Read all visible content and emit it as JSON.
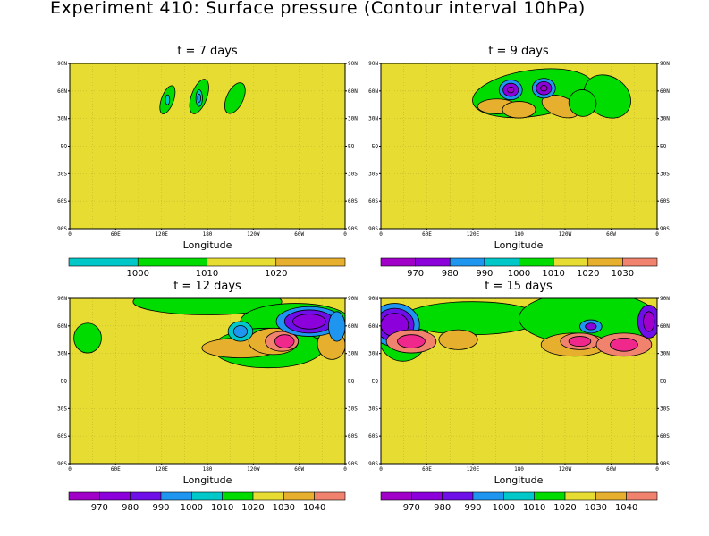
{
  "title": "Experiment 410: Surface pressure (Contour interval 10hPa)",
  "colors": {
    "c950": "#a000c8",
    "c960": "#8c00dc",
    "c970": "#6e0ee8",
    "c980": "#1e96f0",
    "c990": "#00c8c8",
    "c1000": "#00dc00",
    "c1010": "#e6dc32",
    "c1020": "#e6af2d",
    "c1030": "#f0826e",
    "c1040": "#f0288c",
    "bg": "#e6dc32"
  },
  "chart_data": [
    {
      "type": "contour",
      "title": "t = 7 days",
      "xlabel": "Longitude",
      "x_ticks": [
        "0",
        "60E",
        "120E",
        "180",
        "120W",
        "60W",
        "0"
      ],
      "y_ticks_left": [
        "90N",
        "60N",
        "30N",
        "EQ",
        "30S",
        "60S",
        "90S"
      ],
      "y_ticks_right": [
        "90N",
        "60N",
        "30N",
        "EQ",
        "30S",
        "60S",
        "90S"
      ],
      "field": "Surface pressure (hPa)",
      "colorbar_labels": [
        "1000",
        "1010",
        "1020"
      ],
      "colorbar_colors": [
        "#00c8c8",
        "#00dc00",
        "#e6dc32",
        "#e6af2d"
      ],
      "features": [
        {
          "level": 1000,
          "lon": 120,
          "lat": 45
        },
        {
          "level": 990,
          "lon": 160,
          "lat": 50
        },
        {
          "level": 1000,
          "lon": 215,
          "lat": 45
        }
      ]
    },
    {
      "type": "contour",
      "title": "t = 9 days",
      "xlabel": "Longitude",
      "x_ticks": [
        "0",
        "60E",
        "120E",
        "180",
        "120W",
        "60W",
        "0"
      ],
      "y_ticks_left": [
        "90N",
        "60N",
        "30N",
        "EQ",
        "30S",
        "60S",
        "90S"
      ],
      "y_ticks_right": [
        "90N",
        "60N",
        "30N",
        "EQ",
        "30S",
        "60S",
        "90S"
      ],
      "field": "Surface pressure (hPa)",
      "colorbar_labels": [
        "970",
        "980",
        "990",
        "1000",
        "1010",
        "1020",
        "1030"
      ],
      "colorbar_colors": [
        "#a000c8",
        "#8c00dc",
        "#1e96f0",
        "#00c8c8",
        "#00dc00",
        "#e6dc32",
        "#e6af2d",
        "#f0826e"
      ],
      "features": [
        {
          "level": 970,
          "lon": 168,
          "lat": 55
        },
        {
          "level": 970,
          "lon": 200,
          "lat": 55
        },
        {
          "level": 1020,
          "lon": 150,
          "lat": 40
        },
        {
          "level": 1020,
          "lon": 205,
          "lat": 35
        }
      ]
    },
    {
      "type": "contour",
      "title": "t = 12 days",
      "xlabel": "Longitude",
      "x_ticks": [
        "0",
        "60E",
        "120E",
        "180",
        "120W",
        "60W",
        "0"
      ],
      "y_ticks_left": [
        "90N",
        "60N",
        "30N",
        "EQ",
        "30S",
        "60S",
        "90S"
      ],
      "y_ticks_right": [
        "90N",
        "60N",
        "30N",
        "EQ",
        "30S",
        "60S",
        "90S"
      ],
      "field": "Surface pressure (hPa)",
      "colorbar_labels": [
        "970",
        "980",
        "990",
        "1000",
        "1010",
        "1020",
        "1030",
        "1040"
      ],
      "colorbar_colors": [
        "#a000c8",
        "#8c00dc",
        "#6e0ee8",
        "#1e96f0",
        "#00c8c8",
        "#00dc00",
        "#e6dc32",
        "#e6af2d",
        "#f0826e"
      ],
      "features": [
        {
          "level": 960,
          "lon": 270,
          "lat": 65
        },
        {
          "level": 1040,
          "lon": 265,
          "lat": 45
        },
        {
          "level": 980,
          "lon": 318,
          "lat": 62
        },
        {
          "level": 1030,
          "lon": 340,
          "lat": 40
        }
      ]
    },
    {
      "type": "contour",
      "title": "t = 15 days",
      "xlabel": "Longitude",
      "x_ticks": [
        "0",
        "60E",
        "120E",
        "180",
        "120W",
        "60W",
        "0"
      ],
      "y_ticks_left": [
        "90N",
        "60N",
        "30N",
        "EQ",
        "30S",
        "60S",
        "90S"
      ],
      "y_ticks_right": [
        "90N",
        "60N",
        "30N",
        "EQ",
        "30S",
        "60S",
        "90S"
      ],
      "field": "Surface pressure (hPa)",
      "colorbar_labels": [
        "970",
        "980",
        "990",
        "1000",
        "1010",
        "1020",
        "1030",
        "1040"
      ],
      "colorbar_colors": [
        "#a000c8",
        "#8c00dc",
        "#6e0ee8",
        "#1e96f0",
        "#00c8c8",
        "#00dc00",
        "#e6dc32",
        "#e6af2d",
        "#f0826e"
      ],
      "features": [
        {
          "level": 960,
          "lon": 35,
          "lat": 68
        },
        {
          "level": 1040,
          "lon": 35,
          "lat": 45
        },
        {
          "level": 1040,
          "lon": 255,
          "lat": 45
        },
        {
          "level": 1040,
          "lon": 320,
          "lat": 45
        },
        {
          "level": 960,
          "lon": 345,
          "lat": 65
        }
      ]
    }
  ]
}
